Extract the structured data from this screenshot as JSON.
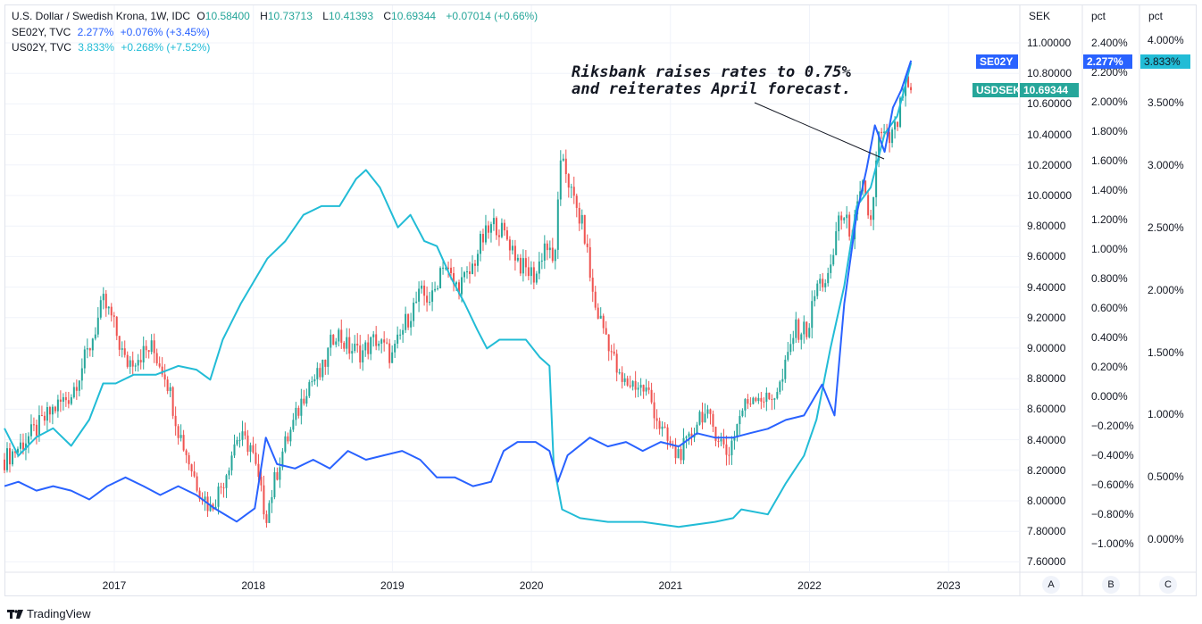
{
  "legend": {
    "main": {
      "title": "U.S. Dollar / Swedish Krona, 1W, IDC",
      "o_label": "O",
      "o": "10.58400",
      "h_label": "H",
      "h": "10.73713",
      "l_label": "L",
      "l": "10.41393",
      "c_label": "C",
      "c": "10.69344",
      "change": "+0.07014 (+0.66%)"
    },
    "se02y": {
      "title": "SE02Y, TVC",
      "value": "2.277%",
      "change": "+0.076% (+3.45%)"
    },
    "us02y": {
      "title": "US02Y, TVC",
      "value": "3.833%",
      "change": "+0.268% (+7.52%)"
    }
  },
  "annotation": {
    "line1": "Riksbank raises rates to 0.75%",
    "line2": "and reiterates April forecast."
  },
  "tags": {
    "se02y_name": "SE02Y",
    "se02y_value": "2.277%",
    "us02y_value": "3.833%",
    "usdsek_name": "USDSEK",
    "usdsek_value": "10.69344"
  },
  "axes": {
    "a_title": "SEK",
    "b_title": "pct",
    "c_title": "pct",
    "a_button": "A",
    "b_button": "B",
    "c_button": "C"
  },
  "brand": "TradingView",
  "colors": {
    "up": "#26a69a",
    "down": "#ef5350",
    "se02y": "#2962ff",
    "us02y": "#22bcd6",
    "grid": "#f0f3fa"
  },
  "chart_data": {
    "type": "line",
    "x_unit": "decimal year",
    "x_ticks": [
      "2017",
      "2018",
      "2019",
      "2020",
      "2021",
      "2022",
      "2023"
    ],
    "x_range": [
      2016.21,
      2023.3
    ],
    "axis_a": {
      "label": "SEK",
      "range": [
        7.6,
        11.0
      ],
      "ticks": [
        "11.00000",
        "10.80000",
        "10.60000",
        "10.40000",
        "10.20000",
        "10.00000",
        "9.80000",
        "9.60000",
        "9.40000",
        "9.20000",
        "9.00000",
        "8.80000",
        "8.60000",
        "8.40000",
        "8.20000",
        "8.00000",
        "7.80000",
        "7.60000"
      ]
    },
    "axis_b": {
      "label": "pct",
      "range": [
        -1.0,
        2.4
      ],
      "ticks": [
        "2.400%",
        "2.200%",
        "2.000%",
        "1.800%",
        "1.600%",
        "1.400%",
        "1.200%",
        "1.000%",
        "0.800%",
        "0.600%",
        "0.400%",
        "0.200%",
        "0.000%",
        "−0.200%",
        "−0.400%",
        "−0.600%",
        "−0.800%",
        "−1.000%"
      ]
    },
    "axis_c": {
      "label": "pct",
      "range": [
        0.0,
        4.0
      ],
      "ticks": [
        "4.000%",
        "3.500%",
        "3.000%",
        "2.500%",
        "2.000%",
        "1.500%",
        "1.000%",
        "0.500%",
        "0.000%"
      ]
    },
    "series": [
      {
        "name": "USDSEK",
        "type": "candlestick",
        "axis": "A",
        "points": [
          [
            2016.21,
            8.27
          ],
          [
            2016.31,
            8.35
          ],
          [
            2016.44,
            8.47
          ],
          [
            2016.56,
            8.6
          ],
          [
            2016.69,
            8.7
          ],
          [
            2016.82,
            9.0
          ],
          [
            2016.92,
            9.3
          ],
          [
            2016.98,
            9.2
          ],
          [
            2017.08,
            8.9
          ],
          [
            2017.17,
            8.95
          ],
          [
            2017.27,
            9.0
          ],
          [
            2017.37,
            8.83
          ],
          [
            2017.46,
            8.47
          ],
          [
            2017.59,
            8.12
          ],
          [
            2017.69,
            7.95
          ],
          [
            2017.78,
            8.12
          ],
          [
            2017.88,
            8.42
          ],
          [
            2017.98,
            8.36
          ],
          [
            2018.09,
            7.9
          ],
          [
            2018.2,
            8.3
          ],
          [
            2018.3,
            8.53
          ],
          [
            2018.39,
            8.77
          ],
          [
            2018.49,
            8.83
          ],
          [
            2018.59,
            9.12
          ],
          [
            2018.68,
            9.0
          ],
          [
            2018.78,
            8.97
          ],
          [
            2018.88,
            9.06
          ],
          [
            2019.0,
            8.94
          ],
          [
            2019.1,
            9.18
          ],
          [
            2019.2,
            9.35
          ],
          [
            2019.29,
            9.32
          ],
          [
            2019.36,
            9.58
          ],
          [
            2019.45,
            9.4
          ],
          [
            2019.55,
            9.47
          ],
          [
            2019.64,
            9.7
          ],
          [
            2019.74,
            9.82
          ],
          [
            2019.84,
            9.7
          ],
          [
            2019.93,
            9.53
          ],
          [
            2020.03,
            9.47
          ],
          [
            2020.1,
            9.7
          ],
          [
            2020.16,
            9.53
          ],
          [
            2020.22,
            10.29
          ],
          [
            2020.29,
            10.0
          ],
          [
            2020.38,
            9.76
          ],
          [
            2020.45,
            9.29
          ],
          [
            2020.55,
            9.06
          ],
          [
            2020.64,
            8.77
          ],
          [
            2020.74,
            8.77
          ],
          [
            2020.84,
            8.71
          ],
          [
            2020.93,
            8.47
          ],
          [
            2021.03,
            8.3
          ],
          [
            2021.12,
            8.36
          ],
          [
            2021.22,
            8.59
          ],
          [
            2021.32,
            8.47
          ],
          [
            2021.41,
            8.3
          ],
          [
            2021.51,
            8.59
          ],
          [
            2021.61,
            8.71
          ],
          [
            2021.7,
            8.65
          ],
          [
            2021.8,
            8.77
          ],
          [
            2021.89,
            9.12
          ],
          [
            2021.99,
            9.12
          ],
          [
            2022.05,
            9.41
          ],
          [
            2022.15,
            9.47
          ],
          [
            2022.21,
            9.88
          ],
          [
            2022.31,
            9.76
          ],
          [
            2022.38,
            10.05
          ],
          [
            2022.44,
            9.82
          ],
          [
            2022.5,
            10.4
          ],
          [
            2022.57,
            10.35
          ],
          [
            2022.63,
            10.46
          ],
          [
            2022.68,
            10.72
          ],
          [
            2022.73,
            10.69
          ]
        ]
      },
      {
        "name": "SE02Y",
        "type": "line",
        "axis": "B",
        "points": [
          [
            2016.21,
            -0.61
          ],
          [
            2016.31,
            -0.58
          ],
          [
            2016.44,
            -0.64
          ],
          [
            2016.56,
            -0.61
          ],
          [
            2016.69,
            -0.64
          ],
          [
            2016.82,
            -0.7
          ],
          [
            2016.95,
            -0.61
          ],
          [
            2017.08,
            -0.55
          ],
          [
            2017.21,
            -0.61
          ],
          [
            2017.33,
            -0.67
          ],
          [
            2017.46,
            -0.61
          ],
          [
            2017.59,
            -0.67
          ],
          [
            2017.72,
            -0.76
          ],
          [
            2017.88,
            -0.85
          ],
          [
            2018.01,
            -0.76
          ],
          [
            2018.09,
            -0.28
          ],
          [
            2018.17,
            -0.46
          ],
          [
            2018.3,
            -0.49
          ],
          [
            2018.43,
            -0.43
          ],
          [
            2018.55,
            -0.49
          ],
          [
            2018.68,
            -0.37
          ],
          [
            2018.81,
            -0.43
          ],
          [
            2018.94,
            -0.4
          ],
          [
            2019.07,
            -0.37
          ],
          [
            2019.2,
            -0.43
          ],
          [
            2019.32,
            -0.55
          ],
          [
            2019.45,
            -0.55
          ],
          [
            2019.58,
            -0.61
          ],
          [
            2019.71,
            -0.58
          ],
          [
            2019.8,
            -0.37
          ],
          [
            2019.9,
            -0.31
          ],
          [
            2020.03,
            -0.31
          ],
          [
            2020.13,
            -0.37
          ],
          [
            2020.19,
            -0.58
          ],
          [
            2020.26,
            -0.4
          ],
          [
            2020.42,
            -0.28
          ],
          [
            2020.55,
            -0.34
          ],
          [
            2020.68,
            -0.31
          ],
          [
            2020.8,
            -0.37
          ],
          [
            2020.93,
            -0.31
          ],
          [
            2021.06,
            -0.34
          ],
          [
            2021.19,
            -0.25
          ],
          [
            2021.32,
            -0.28
          ],
          [
            2021.45,
            -0.28
          ],
          [
            2021.57,
            -0.25
          ],
          [
            2021.7,
            -0.22
          ],
          [
            2021.83,
            -0.16
          ],
          [
            2021.96,
            -0.13
          ],
          [
            2022.09,
            0.08
          ],
          [
            2022.18,
            -0.13
          ],
          [
            2022.25,
            0.63
          ],
          [
            2022.34,
            1.24
          ],
          [
            2022.41,
            1.54
          ],
          [
            2022.47,
            1.84
          ],
          [
            2022.54,
            1.66
          ],
          [
            2022.6,
            1.96
          ],
          [
            2022.66,
            2.08
          ],
          [
            2022.73,
            2.28
          ]
        ]
      },
      {
        "name": "US02Y",
        "type": "line",
        "axis": "C",
        "points": [
          [
            2016.21,
            0.89
          ],
          [
            2016.31,
            0.67
          ],
          [
            2016.44,
            0.82
          ],
          [
            2016.56,
            0.89
          ],
          [
            2016.69,
            0.75
          ],
          [
            2016.82,
            0.96
          ],
          [
            2016.92,
            1.25
          ],
          [
            2017.01,
            1.25
          ],
          [
            2017.14,
            1.32
          ],
          [
            2017.3,
            1.32
          ],
          [
            2017.46,
            1.39
          ],
          [
            2017.59,
            1.36
          ],
          [
            2017.69,
            1.28
          ],
          [
            2017.78,
            1.6
          ],
          [
            2017.91,
            1.89
          ],
          [
            2018.1,
            2.25
          ],
          [
            2018.23,
            2.39
          ],
          [
            2018.36,
            2.6
          ],
          [
            2018.49,
            2.67
          ],
          [
            2018.62,
            2.67
          ],
          [
            2018.74,
            2.89
          ],
          [
            2018.81,
            2.96
          ],
          [
            2018.91,
            2.82
          ],
          [
            2019.04,
            2.5
          ],
          [
            2019.13,
            2.6
          ],
          [
            2019.23,
            2.39
          ],
          [
            2019.32,
            2.35
          ],
          [
            2019.42,
            2.1
          ],
          [
            2019.52,
            1.89
          ],
          [
            2019.61,
            1.68
          ],
          [
            2019.68,
            1.53
          ],
          [
            2019.77,
            1.6
          ],
          [
            2019.87,
            1.6
          ],
          [
            2019.96,
            1.6
          ],
          [
            2020.06,
            1.46
          ],
          [
            2020.13,
            1.39
          ],
          [
            2020.16,
            0.6
          ],
          [
            2020.22,
            0.24
          ],
          [
            2020.35,
            0.17
          ],
          [
            2020.55,
            0.14
          ],
          [
            2020.8,
            0.14
          ],
          [
            2021.06,
            0.1
          ],
          [
            2021.32,
            0.14
          ],
          [
            2021.45,
            0.17
          ],
          [
            2021.51,
            0.24
          ],
          [
            2021.7,
            0.2
          ],
          [
            2021.83,
            0.45
          ],
          [
            2021.96,
            0.67
          ],
          [
            2022.05,
            0.96
          ],
          [
            2022.15,
            1.53
          ],
          [
            2022.25,
            2.03
          ],
          [
            2022.34,
            2.67
          ],
          [
            2022.44,
            2.82
          ],
          [
            2022.54,
            3.25
          ],
          [
            2022.63,
            3.39
          ],
          [
            2022.69,
            3.64
          ],
          [
            2022.73,
            3.82
          ]
        ]
      }
    ]
  }
}
